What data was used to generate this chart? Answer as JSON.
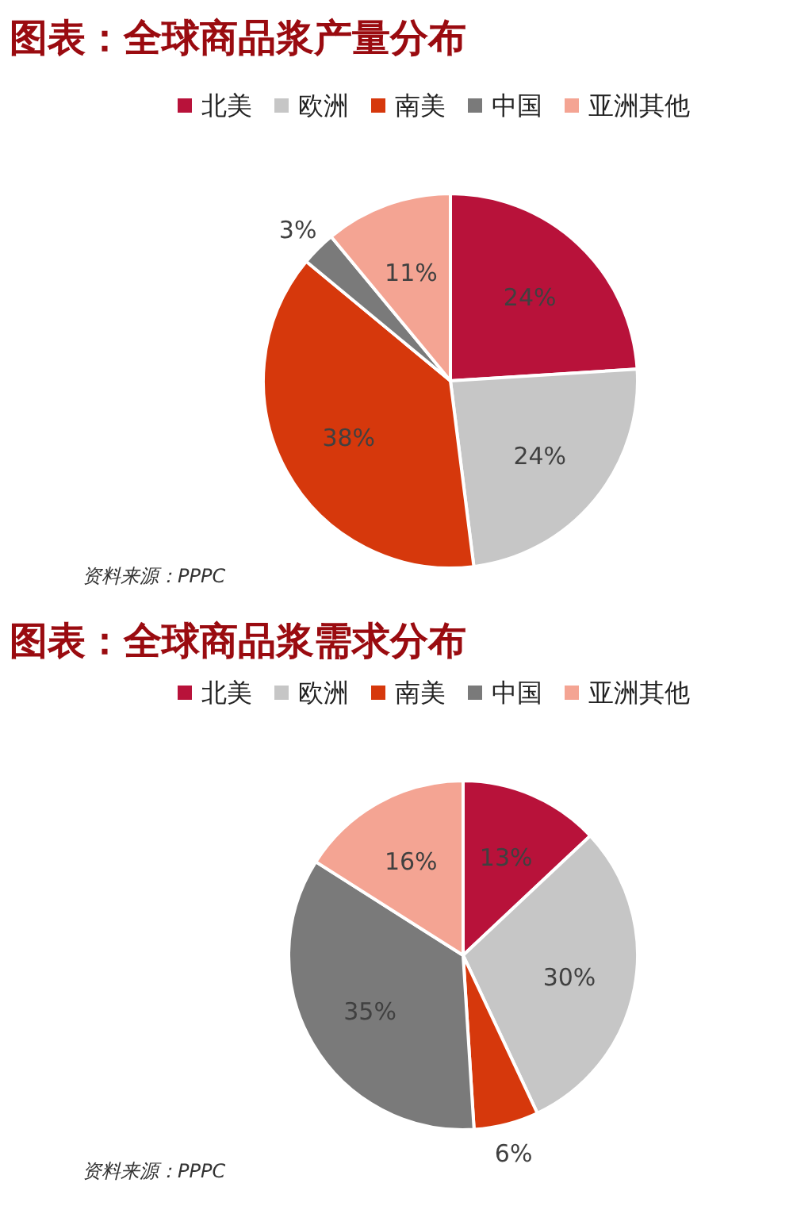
{
  "chart_data": [
    {
      "type": "pie",
      "title": "图表：全球商品浆产量分布",
      "categories": [
        "北美",
        "欧洲",
        "南美",
        "中国",
        "亚洲其他"
      ],
      "values": [
        24,
        24,
        38,
        3,
        11
      ],
      "value_labels": [
        "24%",
        "24%",
        "38%",
        "3%",
        "11%"
      ],
      "colors": [
        "#b8123a",
        "#c6c6c6",
        "#d6380c",
        "#7a7a7a",
        "#f4a493"
      ],
      "legend": "top",
      "annotations": [
        "资料来源：PPPC"
      ]
    },
    {
      "type": "pie",
      "title": "图表：全球商品浆需求分布",
      "categories": [
        "北美",
        "欧洲",
        "南美",
        "中国",
        "亚洲其他"
      ],
      "values": [
        13,
        30,
        6,
        35,
        16
      ],
      "value_labels": [
        "13%",
        "30%",
        "6%",
        "35%",
        "16%"
      ],
      "colors": [
        "#b8123a",
        "#c6c6c6",
        "#d6380c",
        "#7a7a7a",
        "#f4a493"
      ],
      "legend": "top",
      "annotations": [
        "资料来源：PPPC"
      ]
    }
  ]
}
